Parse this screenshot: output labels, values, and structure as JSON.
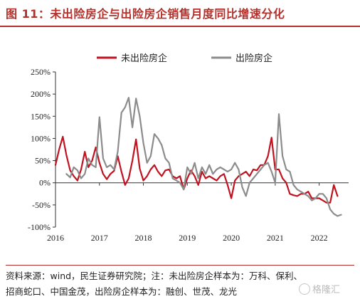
{
  "title": "图 11：未出险房企与出险房企销售月度同比增速分化",
  "source_line1": "资料来源：wind，民生证券研究院；注：未出险房企样本为：万科、保利、",
  "source_line2": "招商蛇口、中国金茂，出险房企样本为：融创、世茂、龙光",
  "watermark": "格隆汇",
  "colors": {
    "series1": "#c0121f",
    "series2": "#8c8c8c",
    "title": "#b5302a"
  },
  "chart_data": {
    "type": "line",
    "title": "",
    "xlabel": "",
    "ylabel": "",
    "ylim": [
      -100,
      250
    ],
    "yticks": [
      -100,
      -50,
      0,
      50,
      100,
      150,
      200,
      250
    ],
    "ytick_labels": [
      "-100%",
      "-50%",
      "0%",
      "50%",
      "100%",
      "150%",
      "200%",
      "250%"
    ],
    "xlim": [
      2016.0,
      2022.67
    ],
    "xticks": [
      2016,
      2017,
      2018,
      2019,
      2020,
      2021,
      2022
    ],
    "xtick_labels": [
      "2016",
      "2017",
      "2018",
      "2019",
      "2020",
      "2021",
      "2022"
    ],
    "legend_position": "top-center",
    "grid": false,
    "series": [
      {
        "name": "未出险房企",
        "color": "#c0121f",
        "start": "2016-01",
        "values": [
          40,
          75,
          104,
          62,
          28,
          15,
          5,
          30,
          70,
          35,
          50,
          80,
          45,
          20,
          8,
          20,
          27,
          60,
          25,
          -5,
          10,
          50,
          98,
          32,
          5,
          15,
          30,
          40,
          25,
          15,
          28,
          30,
          15,
          10,
          15,
          -15,
          10,
          28,
          15,
          -5,
          25,
          10,
          15,
          10,
          5,
          15,
          20,
          -5,
          -35,
          5,
          15,
          20,
          25,
          15,
          30,
          28,
          40,
          40,
          60,
          102,
          30,
          30,
          10,
          0,
          -25,
          -28,
          -30,
          -25,
          -25,
          -20,
          -35,
          -35,
          -35,
          -40,
          -45,
          -45,
          -5,
          -30
        ]
      },
      {
        "name": "出险房企",
        "color": "#8c8c8c",
        "start": "2016-04",
        "values": [
          20,
          12,
          35,
          28,
          10,
          20,
          55,
          40,
          35,
          148,
          55,
          35,
          40,
          30,
          70,
          158,
          170,
          192,
          125,
          190,
          150,
          90,
          45,
          60,
          110,
          100,
          85,
          55,
          45,
          10,
          5,
          0,
          -15,
          35,
          20,
          45,
          10,
          35,
          20,
          40,
          20,
          30,
          35,
          30,
          25,
          30,
          45,
          30,
          -10,
          -30,
          0,
          10,
          20,
          30,
          40,
          45,
          25,
          0,
          155,
          60,
          30,
          25,
          -5,
          -15,
          -20,
          -25,
          -30,
          -40,
          -35,
          -25,
          -25,
          -35,
          -60,
          -70,
          -75,
          -72
        ]
      }
    ]
  }
}
